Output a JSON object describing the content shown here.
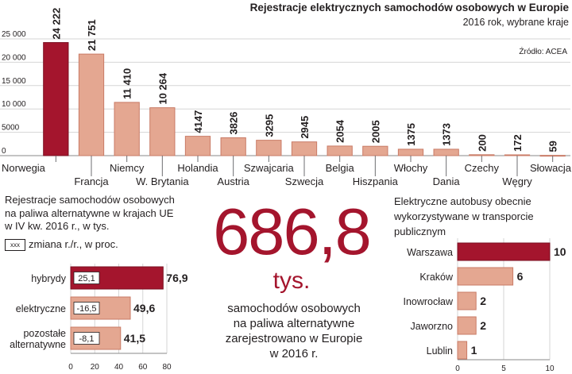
{
  "chart_data": [
    {
      "type": "bar",
      "title": "Rejestracje elektrycznych samochodów osobowych w Europie",
      "subtitle": "2016 rok, wybrane kraje",
      "source": "Źródło: ACEA",
      "categories": [
        "Norwegia",
        "Francja",
        "Niemcy",
        "W. Brytania",
        "Holandia",
        "Austria",
        "Szwajcaria",
        "Szwecja",
        "Belgia",
        "Hiszpania",
        "Włochy",
        "Dania",
        "Czechy",
        "Węgry",
        "Słowacja"
      ],
      "values": [
        24222,
        21751,
        11410,
        10264,
        4147,
        3826,
        3295,
        2945,
        2054,
        2005,
        1375,
        1373,
        200,
        172,
        59
      ],
      "value_labels": [
        "24 222",
        "21 751",
        "11 410",
        "10 264",
        "4147",
        "3826",
        "3295",
        "2945",
        "2054",
        "2005",
        "1375",
        "1373",
        "200",
        "172",
        "59"
      ],
      "yticks": [
        0,
        5000,
        10000,
        15000,
        20000,
        25000
      ],
      "ytick_labels": [
        "0",
        "5000",
        "10 000",
        "15 000",
        "20 000",
        "25 000"
      ],
      "ylim": [
        0,
        26500
      ],
      "highlight": "Norwegia"
    },
    {
      "type": "bar",
      "orientation": "horizontal",
      "title": "Rejestracje samochodów osobowych na paliwa alternatywne w krajach UE w IV kw. 2016 r., w tys.",
      "categories": [
        "hybrydy",
        "elektryczne",
        "pozostałe alternatywne"
      ],
      "values": [
        76.9,
        49.6,
        41.5
      ],
      "value_labels": [
        "76,9",
        "49,6",
        "41,5"
      ],
      "change_labels": [
        "25,1",
        "-16,5",
        "-8,1"
      ],
      "legend_box": "xxx",
      "legend_label": "zmiana r./r., w proc.",
      "xticks": [
        0,
        20,
        40,
        60,
        80
      ],
      "xlim": [
        0,
        80
      ]
    },
    {
      "type": "bar",
      "orientation": "horizontal",
      "title": "Elektryczne autobusy obecnie wykorzystywane w transporcie publicznym",
      "categories": [
        "Warszawa",
        "Kraków",
        "Inowrocław",
        "Jaworzno",
        "Lublin"
      ],
      "values": [
        10,
        6,
        2,
        2,
        1
      ],
      "value_labels": [
        "10",
        "6",
        "2",
        "2",
        "1"
      ],
      "xticks": [
        0,
        5,
        10
      ],
      "xlim": [
        0,
        10
      ]
    }
  ],
  "headline": {
    "number": "686,8",
    "unit": "tys.",
    "description": [
      "samochodów osobowych",
      "na paliwa alternatywne",
      "zarejestrowano w Europie",
      "w 2016 r."
    ]
  },
  "colors": {
    "dark_red": "#a4152d",
    "salmon": "#e4a791",
    "salmon_edge": "#c97b66",
    "grid": "#d6d6d6",
    "text": "#231f20"
  }
}
